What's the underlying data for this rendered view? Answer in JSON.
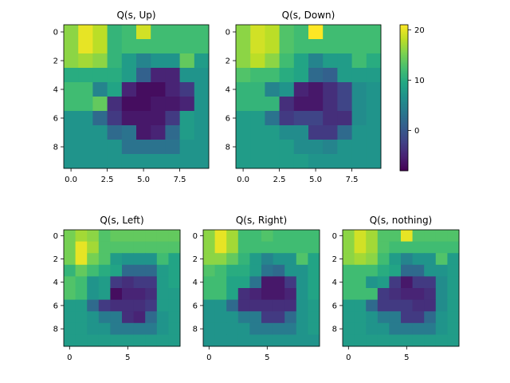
{
  "chart_data": {
    "type": "heatmap",
    "colormap": "viridis",
    "vmin": -8,
    "vmax": 21,
    "colorbar_ticks": [
      "0",
      "10",
      "20"
    ],
    "colorbar_tick_values": [
      0,
      10,
      20
    ],
    "panels": [
      {
        "title": "Q(s, Up)",
        "xticks": [
          "0.0",
          "2.5",
          "5.0",
          "7.5"
        ],
        "xtick_values": [
          0,
          2.5,
          5,
          7.5
        ],
        "yticks": [
          "0",
          "2",
          "4",
          "6",
          "8"
        ],
        "ytick_values": [
          0,
          2,
          4,
          6,
          8
        ],
        "values": [
          [
            16,
            20,
            18,
            11,
            12,
            19,
            12,
            12,
            12,
            12
          ],
          [
            16,
            20,
            18,
            11,
            12,
            12,
            12,
            12,
            12,
            12
          ],
          [
            16,
            17,
            16,
            11,
            8,
            5,
            7,
            7,
            14,
            8
          ],
          [
            10,
            10,
            10,
            10,
            8,
            1,
            -5,
            -5,
            7,
            7
          ],
          [
            12,
            12,
            5,
            9,
            -5,
            -7,
            -7,
            -5,
            -3,
            7
          ],
          [
            12,
            12,
            14,
            -4,
            -7,
            -7,
            -6,
            -6,
            -5,
            7
          ],
          [
            7,
            7,
            2,
            -3,
            -6,
            -6,
            -6,
            -3,
            8,
            7
          ],
          [
            7,
            7,
            7,
            2,
            3,
            -6,
            -5,
            2,
            8,
            7
          ],
          [
            7,
            7,
            7,
            7,
            3,
            3,
            3,
            3,
            7,
            7
          ],
          [
            7,
            7,
            7,
            7,
            7,
            7,
            7,
            7,
            7,
            7
          ]
        ]
      },
      {
        "title": "Q(s, Down)",
        "xticks": [
          "0.0",
          "2.5",
          "5.0",
          "7.5"
        ],
        "xtick_values": [
          0,
          2.5,
          5,
          7.5
        ],
        "yticks": [
          "0",
          "2",
          "4",
          "6",
          "8"
        ],
        "ytick_values": [
          0,
          2,
          4,
          6,
          8
        ],
        "values": [
          [
            16,
            19,
            18,
            13,
            12,
            21,
            12,
            12,
            12,
            12
          ],
          [
            16,
            19,
            18,
            13,
            12,
            12,
            12,
            12,
            12,
            12
          ],
          [
            16,
            18,
            16,
            12,
            9,
            5,
            8,
            8,
            12,
            10
          ],
          [
            13,
            12,
            12,
            10,
            9,
            2,
            1,
            8,
            8,
            8
          ],
          [
            11,
            11,
            5,
            7,
            -5,
            -6,
            -4,
            -2,
            6,
            7
          ],
          [
            11,
            11,
            11,
            -4,
            -6,
            -6,
            -4,
            -2,
            6,
            7
          ],
          [
            8,
            8,
            3,
            -3,
            -2,
            -2,
            -4,
            -4,
            6,
            7
          ],
          [
            8,
            8,
            8,
            6,
            6,
            -3,
            -3,
            2,
            7,
            7
          ],
          [
            8,
            8,
            8,
            8,
            6,
            6,
            5,
            7,
            7,
            7
          ],
          [
            8,
            8,
            8,
            8,
            8,
            7,
            7,
            7,
            7,
            7
          ]
        ]
      },
      {
        "title": "Q(s, Left)",
        "xticks": [
          "0",
          "5"
        ],
        "xtick_values": [
          0,
          5
        ],
        "yticks": [
          "0",
          "2",
          "4",
          "6",
          "8"
        ],
        "ytick_values": [
          0,
          2,
          4,
          6,
          8
        ],
        "values": [
          [
            15,
            17,
            16,
            13,
            14,
            14,
            14,
            14,
            14,
            14
          ],
          [
            15,
            20,
            17,
            13,
            13,
            13,
            13,
            13,
            13,
            13
          ],
          [
            15,
            20,
            15,
            13,
            8,
            7,
            7,
            7,
            12,
            9
          ],
          [
            11,
            14,
            12,
            10,
            9,
            2,
            2,
            2,
            8,
            9
          ],
          [
            13,
            12,
            7,
            8,
            -3,
            -4,
            -3,
            -3,
            8,
            9
          ],
          [
            13,
            12,
            7,
            8,
            -7,
            -5,
            -5,
            -4,
            8,
            8
          ],
          [
            8,
            8,
            2,
            -3,
            -4,
            -4,
            -4,
            -3,
            8,
            8
          ],
          [
            8,
            8,
            7,
            4,
            4,
            -4,
            -5,
            2,
            7,
            8
          ],
          [
            8,
            8,
            7,
            7,
            4,
            4,
            4,
            4,
            7,
            8
          ],
          [
            8,
            8,
            8,
            8,
            8,
            8,
            8,
            8,
            8,
            8
          ]
        ]
      },
      {
        "title": "Q(s, Right)",
        "xticks": [
          "0",
          "5"
        ],
        "xtick_values": [
          0,
          5
        ],
        "yticks": [
          "0",
          "2",
          "4",
          "6",
          "8"
        ],
        "ytick_values": [
          0,
          2,
          4,
          6,
          8
        ],
        "values": [
          [
            16,
            20,
            17,
            12,
            12,
            13,
            12,
            12,
            12,
            12
          ],
          [
            16,
            20,
            17,
            12,
            12,
            12,
            12,
            12,
            12,
            12
          ],
          [
            16,
            16,
            14,
            11,
            8,
            5,
            7,
            7,
            13,
            9
          ],
          [
            13,
            12,
            10,
            10,
            8,
            3,
            2,
            7,
            7,
            9
          ],
          [
            12,
            12,
            9,
            9,
            3,
            -6,
            -6,
            -3,
            7,
            9
          ],
          [
            12,
            12,
            9,
            -4,
            -5,
            -6,
            -6,
            -5,
            7,
            9
          ],
          [
            7,
            7,
            2,
            -4,
            -4,
            -4,
            -4,
            -4,
            7,
            8
          ],
          [
            7,
            7,
            7,
            4,
            4,
            -3,
            -3,
            2,
            7,
            8
          ],
          [
            7,
            7,
            7,
            7,
            4,
            4,
            4,
            4,
            7,
            8
          ],
          [
            7,
            7,
            7,
            7,
            7,
            7,
            7,
            7,
            7,
            7
          ]
        ]
      },
      {
        "title": "Q(s, nothing)",
        "xticks": [
          "0",
          "5"
        ],
        "xtick_values": [
          0,
          5
        ],
        "yticks": [
          "0",
          "2",
          "4",
          "6",
          "8"
        ],
        "ytick_values": [
          0,
          2,
          4,
          6,
          8
        ],
        "values": [
          [
            16,
            19,
            17,
            13,
            13,
            20,
            13,
            13,
            13,
            13
          ],
          [
            16,
            19,
            17,
            13,
            12,
            12,
            12,
            12,
            12,
            12
          ],
          [
            16,
            17,
            16,
            12,
            8,
            5,
            7,
            7,
            13,
            8
          ],
          [
            12,
            12,
            12,
            10,
            9,
            2,
            2,
            7,
            7,
            8
          ],
          [
            12,
            12,
            7,
            8,
            -3,
            -6,
            -3,
            -3,
            6,
            8
          ],
          [
            12,
            12,
            12,
            -3,
            -4,
            -5,
            -5,
            -4,
            6,
            8
          ],
          [
            8,
            8,
            2,
            -3,
            -3,
            -3,
            -4,
            -4,
            6,
            8
          ],
          [
            8,
            8,
            7,
            4,
            4,
            -3,
            -3,
            2,
            7,
            8
          ],
          [
            8,
            8,
            7,
            7,
            4,
            4,
            4,
            4,
            7,
            8
          ],
          [
            8,
            8,
            8,
            8,
            8,
            8,
            8,
            8,
            8,
            8
          ]
        ]
      }
    ]
  }
}
